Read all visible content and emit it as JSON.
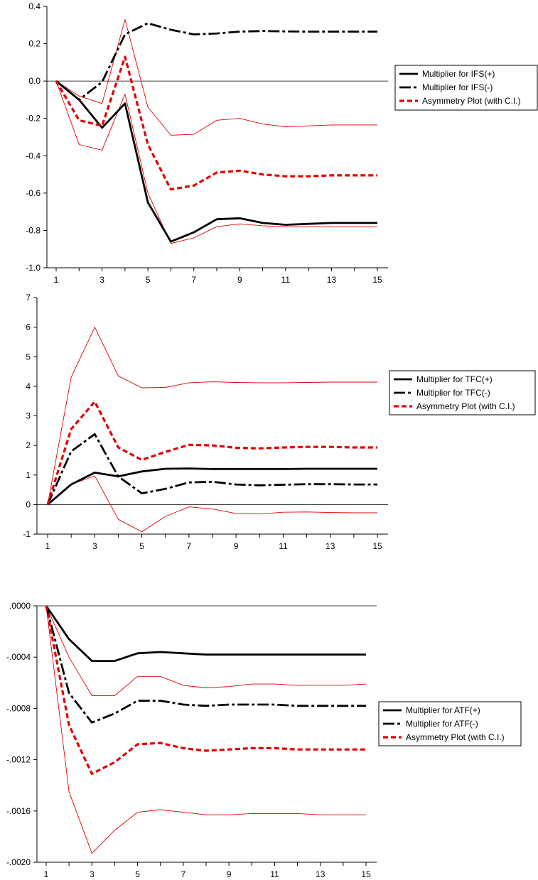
{
  "chart_data": [
    {
      "type": "line",
      "x": [
        1,
        2,
        3,
        4,
        5,
        6,
        7,
        8,
        9,
        10,
        11,
        12,
        13,
        14,
        15
      ],
      "xticks": [
        "1",
        "3",
        "5",
        "7",
        "9",
        "11",
        "13",
        "15"
      ],
      "ylim": [
        -1.0,
        0.4
      ],
      "yticks": [
        "0.4",
        "0.2",
        "0.0",
        "-0.2",
        "-0.4",
        "-0.6",
        "-0.8",
        "-1.0"
      ],
      "series": [
        {
          "name": "Multiplier for IFS(+)",
          "style": "solid",
          "color": "#000000",
          "values": [
            0,
            -0.1,
            -0.25,
            -0.12,
            -0.65,
            -0.86,
            -0.81,
            -0.74,
            -0.735,
            -0.76,
            -0.77,
            -0.765,
            -0.76,
            -0.76,
            -0.76
          ]
        },
        {
          "name": "Multiplier for IFS(-)",
          "style": "longdash",
          "color": "#000000",
          "values": [
            0,
            -0.1,
            -0.005,
            0.25,
            0.31,
            0.275,
            0.25,
            0.255,
            0.265,
            0.268,
            0.266,
            0.265,
            0.265,
            0.265,
            0.265
          ]
        },
        {
          "name": "Asymmetry Plot (with C.I.)",
          "style": "dash",
          "color": "#e00000",
          "values": [
            0,
            -0.21,
            -0.24,
            0.13,
            -0.34,
            -0.58,
            -0.56,
            -0.49,
            -0.48,
            -0.5,
            -0.51,
            -0.51,
            -0.505,
            -0.505,
            -0.505
          ]
        },
        {
          "name": "",
          "style": "thin",
          "color": "#e00000",
          "values": [
            0,
            -0.34,
            -0.37,
            -0.07,
            -0.6,
            -0.87,
            -0.84,
            -0.78,
            -0.765,
            -0.775,
            -0.78,
            -0.78,
            -0.78,
            -0.78,
            -0.78
          ]
        },
        {
          "name": "",
          "style": "thin",
          "color": "#e00000",
          "values": [
            0,
            -0.08,
            -0.12,
            0.33,
            -0.14,
            -0.29,
            -0.285,
            -0.21,
            -0.2,
            -0.23,
            -0.245,
            -0.24,
            -0.235,
            -0.235,
            -0.235
          ]
        }
      ]
    },
    {
      "type": "line",
      "x": [
        1,
        2,
        3,
        4,
        5,
        6,
        7,
        8,
        9,
        10,
        11,
        12,
        13,
        14,
        15
      ],
      "xticks": [
        "1",
        "3",
        "5",
        "7",
        "9",
        "11",
        "13",
        "15"
      ],
      "ylim": [
        -1,
        7
      ],
      "yticks": [
        "7",
        "6",
        "5",
        "4",
        "3",
        "2",
        "1",
        "0",
        "-1"
      ],
      "series": [
        {
          "name": "Multiplier for TFC(+)",
          "style": "solid",
          "color": "#000000",
          "values": [
            0,
            0.68,
            1.08,
            0.95,
            1.12,
            1.21,
            1.22,
            1.2,
            1.2,
            1.2,
            1.2,
            1.21,
            1.21,
            1.21,
            1.21
          ]
        },
        {
          "name": "Multiplier for TFC(-)",
          "style": "longdash",
          "color": "#000000",
          "values": [
            0,
            1.8,
            2.38,
            0.95,
            0.38,
            0.53,
            0.75,
            0.77,
            0.68,
            0.65,
            0.67,
            0.69,
            0.69,
            0.68,
            0.68
          ]
        },
        {
          "name": "Asymmetry Plot (with C.I.)",
          "style": "dash",
          "color": "#e00000",
          "values": [
            0,
            2.55,
            3.48,
            1.93,
            1.51,
            1.78,
            2.02,
            2.0,
            1.92,
            1.9,
            1.93,
            1.95,
            1.95,
            1.93,
            1.93
          ]
        },
        {
          "name": "",
          "style": "thin",
          "color": "#e00000",
          "values": [
            0,
            0.68,
            0.97,
            -0.5,
            -0.92,
            -0.4,
            -0.08,
            -0.15,
            -0.3,
            -0.32,
            -0.26,
            -0.25,
            -0.27,
            -0.28,
            -0.28
          ]
        },
        {
          "name": "",
          "style": "thin",
          "color": "#e00000",
          "values": [
            0,
            4.3,
            6.0,
            4.35,
            3.95,
            3.96,
            4.12,
            4.15,
            4.13,
            4.12,
            4.12,
            4.13,
            4.14,
            4.14,
            4.14
          ]
        }
      ]
    },
    {
      "type": "line",
      "x": [
        1,
        2,
        3,
        4,
        5,
        6,
        7,
        8,
        9,
        10,
        11,
        12,
        13,
        14,
        15
      ],
      "xticks": [
        "1",
        "3",
        "5",
        "7",
        "9",
        "11",
        "13",
        "15"
      ],
      "ylim": [
        -0.002,
        0.0
      ],
      "yticks": [
        ".0000",
        "-.0004",
        "-.0008",
        "-.0012",
        "-.0016",
        "-.0020"
      ],
      "series": [
        {
          "name": "Multiplier for ATF(+)",
          "style": "solid",
          "color": "#000000",
          "values": [
            0,
            -0.00026,
            -0.00043,
            -0.00043,
            -0.00037,
            -0.00036,
            -0.00037,
            -0.00038,
            -0.00038,
            -0.00038,
            -0.00038,
            -0.00038,
            -0.00038,
            -0.00038,
            -0.00038
          ]
        },
        {
          "name": "Multiplier for ATF(-)",
          "style": "longdash",
          "color": "#000000",
          "values": [
            0,
            -0.00068,
            -0.00091,
            -0.00084,
            -0.00074,
            -0.00074,
            -0.00077,
            -0.00078,
            -0.00077,
            -0.00077,
            -0.00077,
            -0.00078,
            -0.00078,
            -0.00078,
            -0.00078
          ]
        },
        {
          "name": "Asymmetry Plot (with C.I.)",
          "style": "dash",
          "color": "#e00000",
          "values": [
            0,
            -0.00093,
            -0.00131,
            -0.00122,
            -0.00108,
            -0.00107,
            -0.00111,
            -0.00113,
            -0.00112,
            -0.00111,
            -0.00111,
            -0.00112,
            -0.00112,
            -0.00112,
            -0.00112
          ]
        },
        {
          "name": "",
          "style": "thin",
          "color": "#e00000",
          "values": [
            0,
            -0.00145,
            -0.00193,
            -0.00175,
            -0.00161,
            -0.00159,
            -0.00161,
            -0.00163,
            -0.00163,
            -0.00162,
            -0.00162,
            -0.00162,
            -0.00163,
            -0.00163,
            -0.00163
          ]
        },
        {
          "name": "",
          "style": "thin",
          "color": "#e00000",
          "values": [
            0,
            -0.0004,
            -0.0007,
            -0.0007,
            -0.00055,
            -0.00055,
            -0.00062,
            -0.00064,
            -0.00063,
            -0.00061,
            -0.00061,
            -0.00062,
            -0.00062,
            -0.00062,
            -0.00061
          ]
        }
      ]
    }
  ]
}
